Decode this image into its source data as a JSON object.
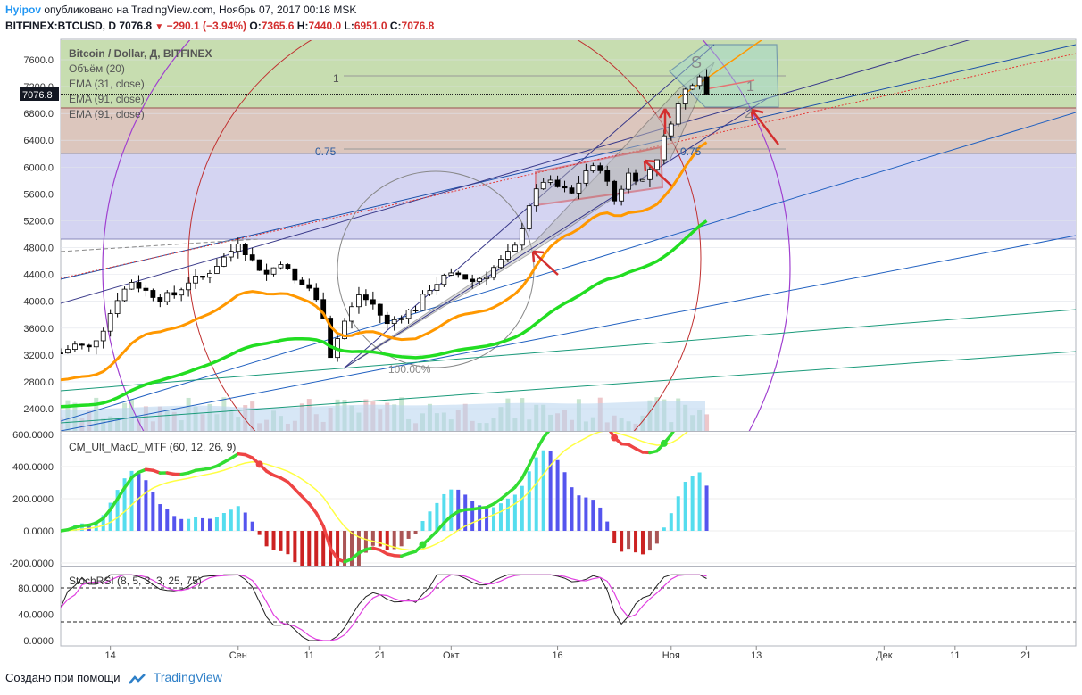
{
  "header": {
    "author": "Hyipov",
    "published_text": "опубликовано на TradingView.com, Ноябрь 07, 2017 00:18 MSK",
    "symbol": "BITFINEX:BTCUSD, D",
    "last": "7076.8",
    "change": "−290.1 (−3.94%)",
    "o_label": "O:",
    "o_value": "7365.6",
    "h_label": "H:",
    "h_value": "7440.0",
    "l_label": "L:",
    "l_value": "6951.0",
    "c_label": "C:",
    "c_value": "7076.8"
  },
  "legend": {
    "title": "Bitcoin / Dollar, Д, BITFINEX",
    "volume": "Объём (20)",
    "ema1": "EMA (31, close)",
    "ema2": "EMA (91, close)",
    "ema3": "EMA (91, close)"
  },
  "annotations": {
    "fib_1": "1",
    "fib_075_left": "0.75",
    "fib_075_right": "0.75",
    "circle_pct": "100.00%",
    "price_badge": "7076.8",
    "pitch_label_1": "1",
    "pitch_label_2": "2",
    "pitch_label_s": "S"
  },
  "price_axis": {
    "ticks": [
      "7600.0",
      "7200.0",
      "6800.0",
      "6400.0",
      "6000.0",
      "5600.0",
      "5200.0",
      "4800.0",
      "4400.0",
      "4000.0",
      "3600.0",
      "3200.0",
      "2800.0",
      "2400.0"
    ]
  },
  "macd": {
    "label": "CM_Ult_MacD_MTF (60, 12, 26, 9)",
    "ticks": [
      "600.0000",
      "400.0000",
      "200.0000",
      "0.0000",
      "-200.0000"
    ]
  },
  "stoch": {
    "label": "StochRSI (8, 5, 3, 3, 25, 75)",
    "ticks": [
      "80.0000",
      "40.0000",
      "0.0000"
    ]
  },
  "time_axis": {
    "labels": [
      "14",
      "Сен",
      "11",
      "21",
      "Окт",
      "16",
      "Ноя",
      "13",
      "Дек",
      "11",
      "21"
    ]
  },
  "footer": {
    "created_with": "Создано при помощи",
    "brand": "TradingView"
  },
  "colors": {
    "bull": "#ffffff",
    "bear": "#000000",
    "ema_fast": "#ff9800",
    "ema_slow": "#00e600",
    "macd_up": "#33dd33",
    "macd_down": "#ee4444",
    "macd_signal": "#ffff44",
    "hist_pos_strong": "#5555ee",
    "hist_pos_weak": "#55ddee",
    "hist_neg_strong": "#cc2222",
    "hist_neg_weak": "#aa5555",
    "stoch_k": "#222222",
    "stoch_d": "#e040e0",
    "zone_green": "#c7ddb0",
    "zone_brown": "#dcc6bd",
    "zone_blue": "#d4d4f2"
  },
  "chart_data": {
    "type": "candlestick",
    "symbol": "BITFINEX:BTCUSD",
    "interval": "D",
    "x_range": [
      "2017-08-07",
      "2017-12-28"
    ],
    "y_range": [
      2200,
      7850
    ],
    "series_close": [
      [
        "2017-08-07",
        3230
      ],
      [
        "2017-08-09",
        3350
      ],
      [
        "2017-08-11",
        3300
      ],
      [
        "2017-08-13",
        3600
      ],
      [
        "2017-08-15",
        4050
      ],
      [
        "2017-08-17",
        4300
      ],
      [
        "2017-08-19",
        4150
      ],
      [
        "2017-08-21",
        4050
      ],
      [
        "2017-08-23",
        4100
      ],
      [
        "2017-08-25",
        4300
      ],
      [
        "2017-08-27",
        4350
      ],
      [
        "2017-08-29",
        4550
      ],
      [
        "2017-08-31",
        4750
      ],
      [
        "2017-09-01",
        4900
      ],
      [
        "2017-09-03",
        4600
      ],
      [
        "2017-09-05",
        4400
      ],
      [
        "2017-09-07",
        4600
      ],
      [
        "2017-09-09",
        4300
      ],
      [
        "2017-09-11",
        4200
      ],
      [
        "2017-09-13",
        3800
      ],
      [
        "2017-09-14",
        3200
      ],
      [
        "2017-09-16",
        3700
      ],
      [
        "2017-09-18",
        4100
      ],
      [
        "2017-09-20",
        3950
      ],
      [
        "2017-09-22",
        3650
      ],
      [
        "2017-09-24",
        3800
      ],
      [
        "2017-09-26",
        3900
      ],
      [
        "2017-09-28",
        4200
      ],
      [
        "2017-09-30",
        4350
      ],
      [
        "2017-10-02",
        4400
      ],
      [
        "2017-10-04",
        4300
      ],
      [
        "2017-10-06",
        4400
      ],
      [
        "2017-10-08",
        4600
      ],
      [
        "2017-10-10",
        4800
      ],
      [
        "2017-10-12",
        5450
      ],
      [
        "2017-10-14",
        5800
      ],
      [
        "2017-10-16",
        5700
      ],
      [
        "2017-10-18",
        5600
      ],
      [
        "2017-10-20",
        5950
      ],
      [
        "2017-10-22",
        6000
      ],
      [
        "2017-10-24",
        5500
      ],
      [
        "2017-10-26",
        5900
      ],
      [
        "2017-10-28",
        5800
      ],
      [
        "2017-10-30",
        6150
      ],
      [
        "2017-11-01",
        6700
      ],
      [
        "2017-11-03",
        7150
      ],
      [
        "2017-11-05",
        7400
      ],
      [
        "2017-11-06",
        7076.8
      ]
    ]
  }
}
